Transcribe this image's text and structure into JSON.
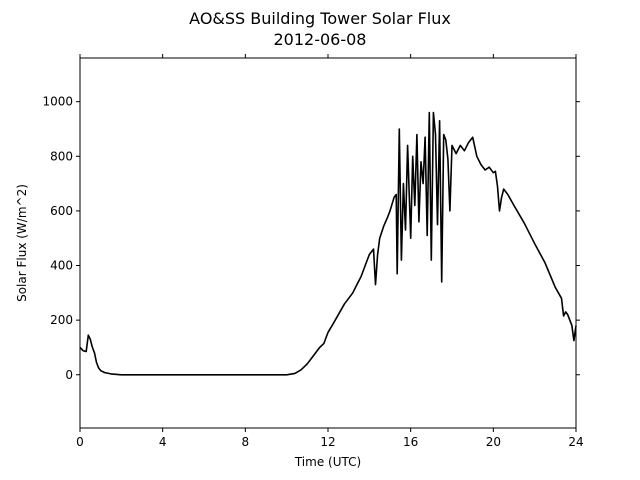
{
  "chart_data": {
    "type": "line",
    "title": "AO&SS Building Tower Solar Flux",
    "subtitle": "2012-06-08",
    "xlabel": "Time (UTC)",
    "ylabel": "Solar Flux (W/m^2)",
    "xlim": [
      0,
      24
    ],
    "ylim": [
      -195,
      1160
    ],
    "xticks": [
      0,
      4,
      8,
      12,
      16,
      20,
      24
    ],
    "yticks": [
      0,
      200,
      400,
      600,
      800,
      1000
    ],
    "grid": false,
    "line_color": "#000000",
    "series": [
      {
        "points": [
          [
            0.0,
            100
          ],
          [
            0.15,
            88
          ],
          [
            0.3,
            85
          ],
          [
            0.4,
            145
          ],
          [
            0.5,
            130
          ],
          [
            0.6,
            100
          ],
          [
            0.7,
            80
          ],
          [
            0.8,
            45
          ],
          [
            0.9,
            25
          ],
          [
            1.0,
            15
          ],
          [
            1.2,
            8
          ],
          [
            1.5,
            3
          ],
          [
            2.0,
            0
          ],
          [
            10.0,
            0
          ],
          [
            10.4,
            5
          ],
          [
            10.7,
            18
          ],
          [
            11.0,
            40
          ],
          [
            11.3,
            70
          ],
          [
            11.6,
            100
          ],
          [
            11.8,
            115
          ],
          [
            12.0,
            155
          ],
          [
            12.2,
            180
          ],
          [
            12.5,
            220
          ],
          [
            12.8,
            260
          ],
          [
            13.0,
            280
          ],
          [
            13.2,
            300
          ],
          [
            13.4,
            330
          ],
          [
            13.6,
            360
          ],
          [
            13.8,
            400
          ],
          [
            14.0,
            440
          ],
          [
            14.2,
            460
          ],
          [
            14.3,
            330
          ],
          [
            14.4,
            440
          ],
          [
            14.5,
            500
          ],
          [
            14.7,
            545
          ],
          [
            14.9,
            580
          ],
          [
            15.0,
            600
          ],
          [
            15.2,
            650
          ],
          [
            15.3,
            660
          ],
          [
            15.35,
            370
          ],
          [
            15.45,
            900
          ],
          [
            15.55,
            420
          ],
          [
            15.65,
            700
          ],
          [
            15.75,
            530
          ],
          [
            15.85,
            840
          ],
          [
            16.0,
            500
          ],
          [
            16.1,
            800
          ],
          [
            16.2,
            620
          ],
          [
            16.3,
            880
          ],
          [
            16.4,
            560
          ],
          [
            16.5,
            780
          ],
          [
            16.6,
            700
          ],
          [
            16.7,
            870
          ],
          [
            16.8,
            510
          ],
          [
            16.9,
            960
          ],
          [
            17.0,
            420
          ],
          [
            17.1,
            960
          ],
          [
            17.2,
            880
          ],
          [
            17.3,
            550
          ],
          [
            17.4,
            930
          ],
          [
            17.5,
            340
          ],
          [
            17.6,
            880
          ],
          [
            17.7,
            860
          ],
          [
            17.8,
            790
          ],
          [
            17.9,
            600
          ],
          [
            18.0,
            840
          ],
          [
            18.2,
            810
          ],
          [
            18.4,
            840
          ],
          [
            18.6,
            820
          ],
          [
            18.8,
            850
          ],
          [
            19.0,
            870
          ],
          [
            19.2,
            800
          ],
          [
            19.4,
            770
          ],
          [
            19.6,
            750
          ],
          [
            19.8,
            760
          ],
          [
            20.0,
            740
          ],
          [
            20.1,
            745
          ],
          [
            20.2,
            690
          ],
          [
            20.3,
            600
          ],
          [
            20.4,
            650
          ],
          [
            20.5,
            680
          ],
          [
            20.7,
            660
          ],
          [
            21.0,
            620
          ],
          [
            21.5,
            555
          ],
          [
            22.0,
            480
          ],
          [
            22.5,
            410
          ],
          [
            23.0,
            320
          ],
          [
            23.3,
            280
          ],
          [
            23.4,
            215
          ],
          [
            23.5,
            230
          ],
          [
            23.6,
            220
          ],
          [
            23.7,
            200
          ],
          [
            23.8,
            180
          ],
          [
            23.9,
            125
          ],
          [
            24.0,
            180
          ]
        ]
      }
    ]
  }
}
